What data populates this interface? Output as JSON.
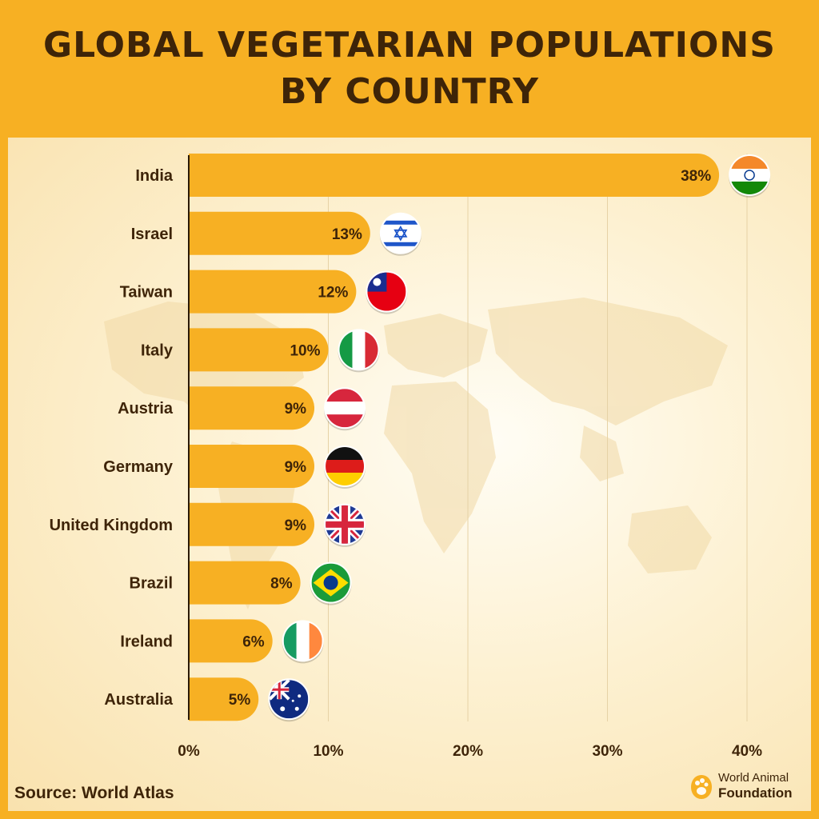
{
  "header": {
    "title_line1": "GLOBAL VEGETARIAN POPULATIONS",
    "title_line2": "BY COUNTRY"
  },
  "footer": {
    "source": "Source: World Atlas",
    "brand_line1": "World Animal",
    "brand_line2": "Foundation"
  },
  "colors": {
    "background": "#f7b023",
    "bar": "#f7b023",
    "text": "#3e2408"
  },
  "chart_data": {
    "type": "bar",
    "orientation": "horizontal",
    "title": "GLOBAL VEGETARIAN POPULATIONS BY COUNTRY",
    "xlabel": "",
    "ylabel": "",
    "categories": [
      "India",
      "Israel",
      "Taiwan",
      "Italy",
      "Austria",
      "Germany",
      "United Kingdom",
      "Brazil",
      "Ireland",
      "Australia"
    ],
    "values": [
      38,
      13,
      12,
      10,
      9,
      9,
      9,
      8,
      6,
      5
    ],
    "value_labels": [
      "38%",
      "13%",
      "12%",
      "10%",
      "9%",
      "9%",
      "9%",
      "8%",
      "6%",
      "5%"
    ],
    "flags": [
      "india-flag-icon",
      "israel-flag-icon",
      "taiwan-flag-icon",
      "italy-flag-icon",
      "austria-flag-icon",
      "germany-flag-icon",
      "uk-flag-icon",
      "brazil-flag-icon",
      "ireland-flag-icon",
      "australia-flag-icon"
    ],
    "xticks": [
      "0%",
      "10%",
      "20%",
      "30%",
      "40%"
    ],
    "xtick_values": [
      0,
      10,
      20,
      30,
      40
    ],
    "xlim": [
      0,
      40
    ],
    "grid": true,
    "legend": "none"
  }
}
